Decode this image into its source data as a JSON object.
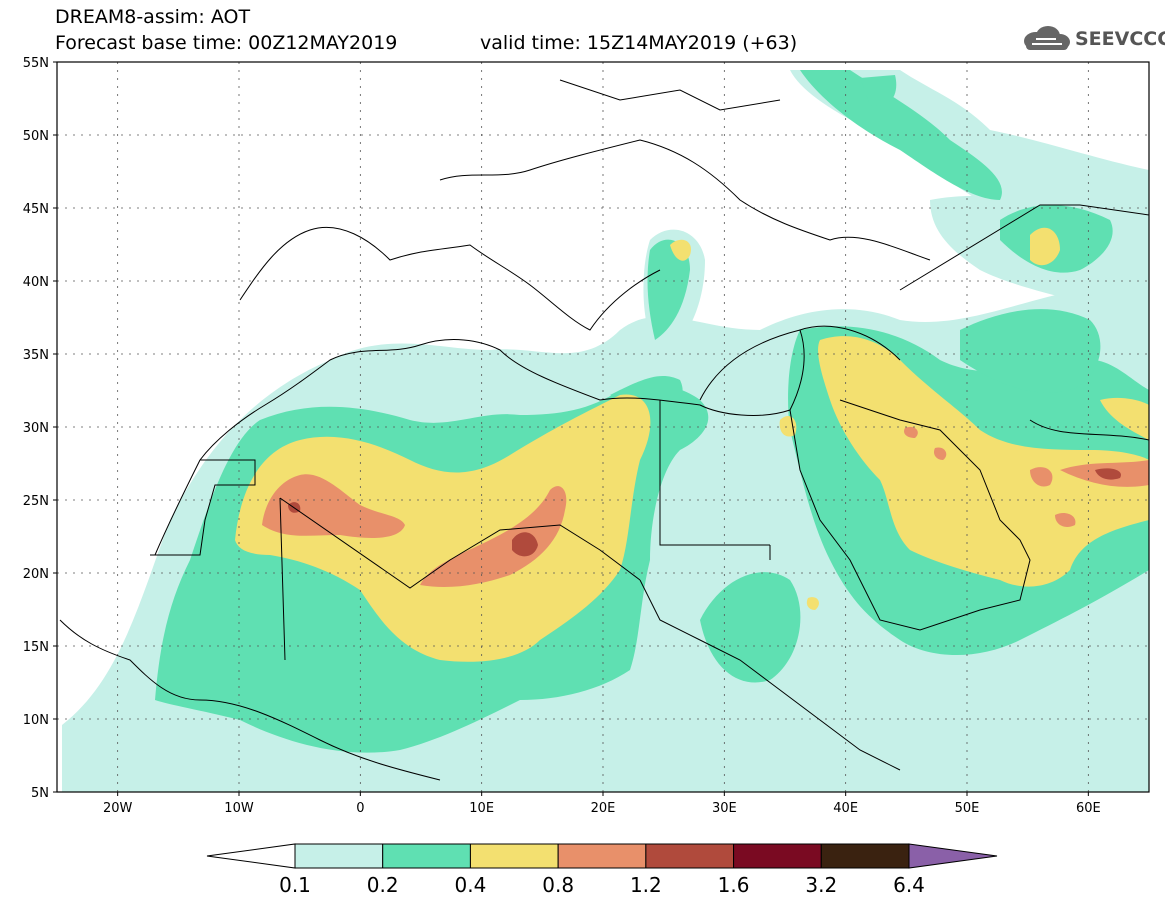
{
  "header": {
    "title": "DREAM8-assim: AOT",
    "base_time": "Forecast base time: 00Z12MAY2019",
    "valid_time": "valid time: 15Z14MAY2019 (+63)",
    "logo_text": "SEEVCCC",
    "logo_icon": "cloud-icon"
  },
  "map": {
    "lon_range": [
      -25,
      65
    ],
    "lat_range": [
      5,
      55
    ],
    "lat_labels": [
      "55N",
      "50N",
      "45N",
      "40N",
      "35N",
      "30N",
      "25N",
      "20N",
      "15N",
      "10N",
      "5N"
    ],
    "lat_values": [
      55,
      50,
      45,
      40,
      35,
      30,
      25,
      20,
      15,
      10,
      5
    ],
    "lon_labels": [
      "20W",
      "10W",
      "0",
      "10E",
      "20E",
      "30E",
      "40E",
      "50E",
      "60E"
    ],
    "lon_values": [
      -20,
      -10,
      0,
      10,
      20,
      30,
      40,
      50,
      60
    ],
    "grid": "dotted"
  },
  "colorbar": {
    "labels": [
      "0.1",
      "0.2",
      "0.4",
      "0.8",
      "1.2",
      "1.6",
      "3.2",
      "6.4"
    ],
    "colors": [
      "#ffffff",
      "#c6f0e8",
      "#5fe0b2",
      "#f3e070",
      "#e8906a",
      "#b04a3c",
      "#7a0a22",
      "#3a2210",
      "#8a60a8"
    ]
  }
}
